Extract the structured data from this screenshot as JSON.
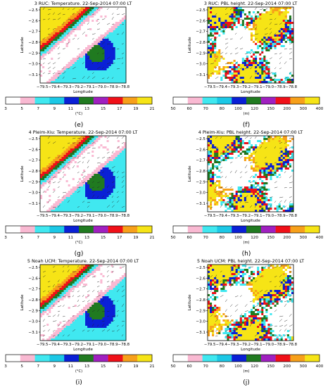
{
  "colors": {
    "temperature_scale": [
      "#ffffff",
      "#f9b9d2",
      "#40e8f0",
      "#1cc8e6",
      "#0a20d6",
      "#207a20",
      "#a020c0",
      "#f01018",
      "#f7a01a",
      "#f6e416"
    ],
    "pbl_scale": [
      "#ffffff",
      "#f9b9d2",
      "#40e8f0",
      "#1cc8e6",
      "#0a20d6",
      "#207a20",
      "#a020c0",
      "#f01018",
      "#f7a01a",
      "#f6e416"
    ]
  },
  "axes": {
    "xlabel": "Longitude",
    "ylabel": "Latitude",
    "xtick_text": "−79.5−79.4−79.3−79.2−79.1−79.0−78.9−78.8",
    "yticks": [
      "−2.5",
      "−2.6",
      "−2.7",
      "−2.8",
      "−2.9",
      "−3.0",
      "−3.1"
    ]
  },
  "colorbars": {
    "temperature": {
      "ticks": [
        "3",
        "5",
        "7",
        "9",
        "11",
        "13",
        "15",
        "17",
        "19",
        "21"
      ],
      "unit": "(°C)"
    },
    "pbl": {
      "ticks": [
        "50",
        "60",
        "70",
        "80",
        "100",
        "120",
        "150",
        "200",
        "300",
        "400"
      ],
      "unit": "(m)"
    }
  },
  "panels": [
    {
      "title": "3 RUC: Temperature. 22-Sep-2014 07:00 LT",
      "letter": "(e)",
      "kind": "temperature"
    },
    {
      "title": "3 RUC: PBL height. 22-Sep-2014 07:00 LT",
      "letter": "(f)",
      "kind": "pbl"
    },
    {
      "title": "4 Pleim-Xiu: Temperature. 22-Sep-2014 07:00 LT",
      "letter": "(g)",
      "kind": "temperature"
    },
    {
      "title": "4 Pleim-Xiu: PBL height. 22-Sep-2014 07:00 LT",
      "letter": "(h)",
      "kind": "pbl"
    },
    {
      "title": "5 Noah UCM: Temperature. 22-Sep-2014 07:00 LT",
      "letter": "(i)",
      "kind": "temperature"
    },
    {
      "title": "5 Noah UCM: PBL height. 22-Sep-2014 07:00 LT",
      "letter": "(j)",
      "kind": "pbl"
    }
  ],
  "chart_data": [
    {
      "type": "heatmap",
      "title": "3 RUC: Temperature. 22-Sep-2014 07:00 LT",
      "xlabel": "Longitude",
      "ylabel": "Latitude",
      "xlim": [
        -79.55,
        -78.75
      ],
      "ylim": [
        -3.2,
        -2.47
      ],
      "colorbar_levels": [
        3,
        5,
        7,
        9,
        11,
        13,
        15,
        17,
        19,
        21
      ],
      "colorbar_unit": "(°C)"
    },
    {
      "type": "heatmap",
      "title": "3 RUC: PBL height. 22-Sep-2014 07:00 LT",
      "xlabel": "Longitude",
      "ylabel": "Latitude",
      "xlim": [
        -79.55,
        -78.75
      ],
      "ylim": [
        -3.2,
        -2.47
      ],
      "colorbar_levels": [
        50,
        60,
        70,
        80,
        100,
        120,
        150,
        200,
        300,
        400
      ],
      "colorbar_unit": "(m)"
    },
    {
      "type": "heatmap",
      "title": "4 Pleim-Xiu: Temperature. 22-Sep-2014 07:00 LT",
      "xlabel": "Longitude",
      "ylabel": "Latitude",
      "xlim": [
        -79.55,
        -78.75
      ],
      "ylim": [
        -3.2,
        -2.47
      ],
      "colorbar_levels": [
        3,
        5,
        7,
        9,
        11,
        13,
        15,
        17,
        19,
        21
      ],
      "colorbar_unit": "(°C)"
    },
    {
      "type": "heatmap",
      "title": "4 Pleim-Xiu: PBL height. 22-Sep-2014 07:00 LT",
      "xlabel": "Longitude",
      "ylabel": "Latitude",
      "xlim": [
        -79.55,
        -78.75
      ],
      "ylim": [
        -3.2,
        -2.47
      ],
      "colorbar_levels": [
        50,
        60,
        70,
        80,
        100,
        120,
        150,
        200,
        300,
        400
      ],
      "colorbar_unit": "(m)"
    },
    {
      "type": "heatmap",
      "title": "5 Noah UCM: Temperature. 22-Sep-2014 07:00 LT",
      "xlabel": "Longitude",
      "ylabel": "Latitude",
      "xlim": [
        -79.55,
        -78.75
      ],
      "ylim": [
        -3.2,
        -2.47
      ],
      "colorbar_levels": [
        3,
        5,
        7,
        9,
        11,
        13,
        15,
        17,
        19,
        21
      ],
      "colorbar_unit": "(°C)"
    },
    {
      "type": "heatmap",
      "title": "5 Noah UCM: PBL height. 22-Sep-2014 07:00 LT",
      "xlabel": "Longitude",
      "ylabel": "Latitude",
      "xlim": [
        -79.55,
        -78.75
      ],
      "ylim": [
        -3.2,
        -2.47
      ],
      "colorbar_levels": [
        50,
        60,
        70,
        80,
        100,
        120,
        150,
        200,
        300,
        400
      ],
      "colorbar_unit": "(m)"
    }
  ]
}
